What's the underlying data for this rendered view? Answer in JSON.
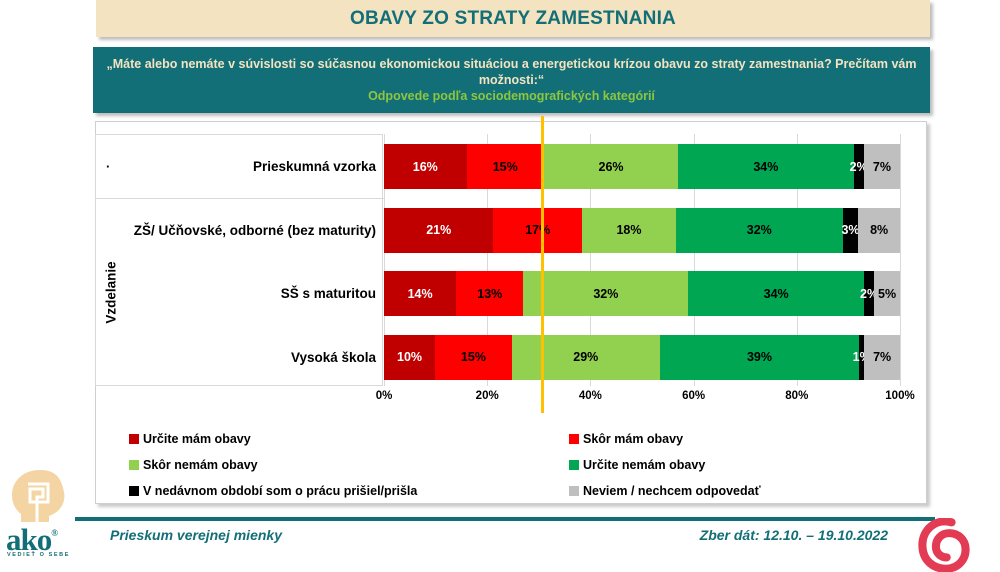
{
  "title": "OBAVY ZO STRATY ZAMESTNANIA",
  "question": {
    "text": "„Máte alebo nemáte v súvislosti so súčasnou ekonomickou situáciou a energetickou krízou obavu zo straty zamestnania? Prečítam vám možnosti:“",
    "subtitle": "Odpovede podľa sociodemografických kategórií"
  },
  "chart_data": {
    "type": "bar",
    "orientation": "horizontal",
    "stacked": true,
    "grid": true,
    "group_label": "Vzdelanie",
    "first_row_marker": "·",
    "categories": [
      "Prieskumná vzorka",
      "ZŠ/ Učňovské, odborné (bez maturity)",
      "SŠ s maturitou",
      "Vysoká škola"
    ],
    "series": [
      {
        "name": "Určite mám obavy",
        "color": "#C00000",
        "label_color": "#FFFFFF",
        "values": [
          16,
          21,
          14,
          10
        ]
      },
      {
        "name": "Skôr mám obavy",
        "color": "#FF0000",
        "label_color": "#000000",
        "values": [
          15,
          17,
          13,
          15
        ]
      },
      {
        "name": "Skôr nemám obavy",
        "color": "#92D050",
        "label_color": "#000000",
        "values": [
          26,
          18,
          32,
          29
        ]
      },
      {
        "name": "Určite nemám obavy",
        "color": "#00A651",
        "label_color": "#000000",
        "values": [
          34,
          32,
          34,
          39
        ]
      },
      {
        "name": "V nedávnom období som o prácu prišiel/prišla",
        "color": "#000000",
        "label_color": "#FFFFFF",
        "values": [
          2,
          3,
          2,
          1
        ]
      },
      {
        "name": "Neviem / nechcem odpovedať",
        "color": "#BFBFBF",
        "label_color": "#000000",
        "values": [
          7,
          8,
          5,
          7
        ]
      }
    ],
    "x_ticks": [
      "0%",
      "20%",
      "40%",
      "60%",
      "80%",
      "100%"
    ],
    "xlim": [
      0,
      100
    ],
    "value_suffix": "%",
    "legend_position": "bottom",
    "reference_line": {
      "value": 31,
      "color": "#FFC000"
    }
  },
  "footer": {
    "left": "Prieskum verejnej mienky",
    "right": "Zber dát: 12.10. – 19.10.2022"
  },
  "logos": {
    "ako_word": "ako",
    "ako_reg": "®",
    "ako_caption": "VEDIEŤ O SEBE"
  },
  "colors": {
    "teal": "#136F77",
    "cream": "#F3E3C1",
    "subtitle-green": "#8DC63F",
    "grid": "#D9D9D9",
    "border": "#CFCFCF",
    "spiral-red": "#E23B53",
    "head-beige": "#F4D4A2"
  }
}
